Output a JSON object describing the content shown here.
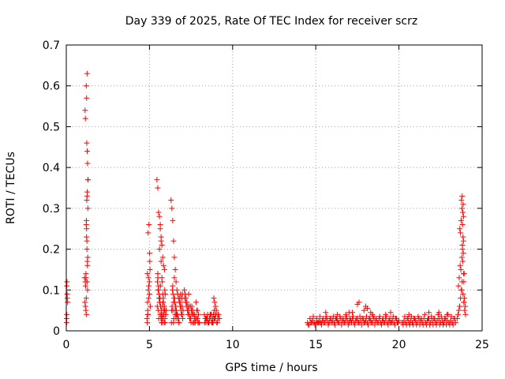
{
  "chart_data": {
    "type": "scatter",
    "title": "Day 339 of 2025, Rate Of TEC Index for receiver scrz",
    "xlabel": "GPS time / hours",
    "ylabel": "ROTI / TECUs",
    "xlim": [
      0,
      25
    ],
    "ylim": [
      0,
      0.7
    ],
    "xticks": [
      "0",
      "5",
      "10",
      "15",
      "20",
      "25"
    ],
    "yticks": [
      "0",
      "0.1",
      "0.2",
      "0.3",
      "0.4",
      "0.5",
      "0.6",
      "0.7"
    ],
    "grid": true,
    "marker": "+",
    "marker_color": "#ff0000",
    "series": [
      {
        "x": [
          0.02,
          0.02,
          0.03,
          0.03,
          0.04,
          0.05,
          0.06,
          0.08,
          1.1,
          1.12,
          1.15,
          1.18,
          1.2,
          1.22,
          1.25,
          1.27,
          1.15,
          1.13,
          1.2,
          1.22,
          1.25,
          1.23,
          1.26,
          1.28,
          1.3,
          1.25,
          1.3,
          1.2,
          1.22,
          1.24,
          1.27,
          1.18,
          1.16,
          1.21,
          1.23,
          1.26,
          1.29,
          1.24,
          1.19,
          1.14,
          1.28,
          1.31,
          1.22,
          4.85,
          4.9,
          4.95,
          5.0,
          4.88,
          4.92,
          4.97,
          5.02,
          5.05,
          4.87,
          4.93,
          5.0,
          4.9,
          4.96,
          5.03,
          4.89,
          4.94,
          5.01,
          4.91,
          5.45,
          5.5,
          5.55,
          5.6,
          5.65,
          5.7,
          5.75,
          5.8,
          5.85,
          5.9,
          5.48,
          5.52,
          5.58,
          5.62,
          5.68,
          5.72,
          5.78,
          5.82,
          5.88,
          5.95,
          5.5,
          5.55,
          5.6,
          5.7,
          5.75,
          5.8,
          5.65,
          5.7,
          5.9,
          6.0,
          5.56,
          5.64,
          5.73,
          5.84,
          5.92,
          5.47,
          5.53,
          5.61,
          5.69,
          5.77,
          5.86,
          5.94,
          5.58,
          5.66,
          5.79,
          5.87,
          5.51,
          5.63,
          5.71,
          5.83,
          5.93,
          5.54,
          5.67,
          5.76,
          5.89,
          5.98,
          5.6,
          5.74,
          5.81,
          5.91,
          6.3,
          6.35,
          6.4,
          6.45,
          6.5,
          6.55,
          6.6,
          6.65,
          6.7,
          6.75,
          6.8,
          6.85,
          6.9,
          6.95,
          7.0,
          6.32,
          6.38,
          6.42,
          6.48,
          6.52,
          6.58,
          6.62,
          6.68,
          6.72,
          6.78,
          6.82,
          6.88,
          6.92,
          6.98,
          7.02,
          6.4,
          6.45,
          6.5,
          6.55,
          6.6,
          6.36,
          6.44,
          6.54,
          6.64,
          6.74,
          6.84,
          6.94,
          6.34,
          6.46,
          6.57,
          6.67,
          6.77,
          6.87,
          6.97,
          6.41,
          6.51,
          6.61,
          6.71,
          7.1,
          7.15,
          7.2,
          7.25,
          7.3,
          7.35,
          7.4,
          7.45,
          7.5,
          7.55,
          7.6,
          7.65,
          7.7,
          7.75,
          7.8,
          7.85,
          7.9,
          7.95,
          8.0,
          7.12,
          7.22,
          7.32,
          7.42,
          7.52,
          7.62,
          7.72,
          7.82,
          7.92,
          7.18,
          7.28,
          7.38,
          7.48,
          7.58,
          7.68,
          7.78,
          7.88,
          7.98,
          7.36,
          7.46,
          7.56,
          8.3,
          8.35,
          8.4,
          8.45,
          8.5,
          8.55,
          8.6,
          8.65,
          8.7,
          8.75,
          8.8,
          8.85,
          8.9,
          8.95,
          9.0,
          9.05,
          9.1,
          9.15,
          9.2,
          8.32,
          8.42,
          8.52,
          8.62,
          8.72,
          8.82,
          8.92,
          9.02,
          9.12,
          8.38,
          8.48,
          8.58,
          8.68,
          8.78,
          8.88,
          8.98,
          9.08,
          9.18,
          8.87,
          8.92,
          8.97,
          14.5,
          14.6,
          14.7,
          14.8,
          14.9,
          15.0,
          15.1,
          15.2,
          15.3,
          15.4,
          15.5,
          15.6,
          15.7,
          15.8,
          15.9,
          16.0,
          16.1,
          16.2,
          16.3,
          16.4,
          16.5,
          16.6,
          16.7,
          16.8,
          16.9,
          17.0,
          17.1,
          17.2,
          17.3,
          17.4,
          17.5,
          17.6,
          17.7,
          17.8,
          17.9,
          18.0,
          18.1,
          18.2,
          18.3,
          18.4,
          18.5,
          18.6,
          18.7,
          18.8,
          18.9,
          19.0,
          19.1,
          19.2,
          19.3,
          19.4,
          19.5,
          19.6,
          19.7,
          19.8,
          19.9,
          20.0,
          14.55,
          14.75,
          14.95,
          15.15,
          15.35,
          15.55,
          15.75,
          15.95,
          16.15,
          16.35,
          16.55,
          16.75,
          16.95,
          17.15,
          17.35,
          17.55,
          17.75,
          17.95,
          18.15,
          18.35,
          18.55,
          18.75,
          18.95,
          19.15,
          19.35,
          19.55,
          19.75,
          19.95,
          14.65,
          14.85,
          15.05,
          15.25,
          15.45,
          15.65,
          15.85,
          16.05,
          16.25,
          16.45,
          16.65,
          16.85,
          17.05,
          17.25,
          17.45,
          17.65,
          17.85,
          18.05,
          18.25,
          18.45,
          18.65,
          18.85,
          19.05,
          19.25,
          19.45,
          19.65,
          19.85,
          15.6,
          16.3,
          17.2,
          17.5,
          17.6,
          17.9,
          18.0,
          18.3,
          18.4,
          19.2,
          19.5,
          16.8,
          17.0,
          18.1,
          20.2,
          20.3,
          20.4,
          20.5,
          20.6,
          20.7,
          20.8,
          20.9,
          21.0,
          21.1,
          21.2,
          21.3,
          21.4,
          21.5,
          21.6,
          21.7,
          21.8,
          21.9,
          22.0,
          22.1,
          22.2,
          22.3,
          22.4,
          22.5,
          22.6,
          22.7,
          22.8,
          22.9,
          23.0,
          23.1,
          23.2,
          23.3,
          23.4,
          20.25,
          20.45,
          20.65,
          20.85,
          21.05,
          21.25,
          21.45,
          21.65,
          21.85,
          22.05,
          22.25,
          22.45,
          22.65,
          22.85,
          23.05,
          23.25,
          20.35,
          20.55,
          20.75,
          20.95,
          21.15,
          21.35,
          21.55,
          21.75,
          21.95,
          22.15,
          22.35,
          22.55,
          22.75,
          22.95,
          23.15,
          23.35,
          20.6,
          21.8,
          22.4,
          22.9,
          23.5,
          23.55,
          23.6,
          23.65,
          23.7,
          23.75,
          23.8,
          23.85,
          23.9,
          23.95,
          24.0,
          23.58,
          23.62,
          23.68,
          23.72,
          23.78,
          23.82,
          23.88,
          23.92,
          23.98,
          23.66,
          23.74,
          23.84,
          23.94,
          23.76,
          23.8,
          23.86,
          23.7,
          23.9,
          23.82,
          23.88,
          23.79,
          23.85,
          23.81,
          23.87,
          23.83,
          23.89,
          23.77,
          23.91
        ],
        "y": [
          0.02,
          0.03,
          0.04,
          0.11,
          0.12,
          0.09,
          0.08,
          0.07,
          0.13,
          0.07,
          0.06,
          0.05,
          0.08,
          0.04,
          0.12,
          0.17,
          0.52,
          0.54,
          0.6,
          0.57,
          0.63,
          0.46,
          0.44,
          0.41,
          0.37,
          0.33,
          0.3,
          0.26,
          0.23,
          0.2,
          0.16,
          0.14,
          0.11,
          0.27,
          0.32,
          0.34,
          0.18,
          0.22,
          0.13,
          0.12,
          0.1,
          0.37,
          0.25,
          0.03,
          0.05,
          0.08,
          0.12,
          0.14,
          0.24,
          0.26,
          0.17,
          0.06,
          0.02,
          0.1,
          0.09,
          0.04,
          0.11,
          0.15,
          0.07,
          0.13,
          0.19,
          0.04,
          0.37,
          0.35,
          0.29,
          0.28,
          0.26,
          0.23,
          0.21,
          0.18,
          0.16,
          0.15,
          0.12,
          0.1,
          0.08,
          0.07,
          0.06,
          0.05,
          0.04,
          0.03,
          0.02,
          0.09,
          0.14,
          0.11,
          0.2,
          0.17,
          0.13,
          0.09,
          0.25,
          0.22,
          0.06,
          0.05,
          0.03,
          0.04,
          0.02,
          0.08,
          0.1,
          0.06,
          0.05,
          0.07,
          0.03,
          0.12,
          0.04,
          0.02,
          0.09,
          0.11,
          0.06,
          0.05,
          0.13,
          0.08,
          0.04,
          0.07,
          0.03,
          0.1,
          0.06,
          0.02,
          0.05,
          0.04,
          0.08,
          0.03,
          0.07,
          0.05,
          0.32,
          0.3,
          0.27,
          0.22,
          0.18,
          0.15,
          0.12,
          0.1,
          0.09,
          0.08,
          0.07,
          0.06,
          0.05,
          0.04,
          0.03,
          0.02,
          0.1,
          0.09,
          0.08,
          0.07,
          0.06,
          0.05,
          0.04,
          0.03,
          0.02,
          0.08,
          0.06,
          0.04,
          0.09,
          0.05,
          0.11,
          0.07,
          0.13,
          0.04,
          0.03,
          0.06,
          0.02,
          0.05,
          0.04,
          0.03,
          0.07,
          0.08,
          0.05,
          0.03,
          0.06,
          0.04,
          0.02,
          0.09,
          0.06,
          0.05,
          0.08,
          0.04,
          0.03,
          0.1,
          0.09,
          0.08,
          0.07,
          0.06,
          0.05,
          0.04,
          0.03,
          0.02,
          0.06,
          0.05,
          0.04,
          0.03,
          0.02,
          0.07,
          0.05,
          0.03,
          0.04,
          0.02,
          0.08,
          0.06,
          0.04,
          0.03,
          0.05,
          0.02,
          0.04,
          0.03,
          0.02,
          0.07,
          0.05,
          0.06,
          0.03,
          0.04,
          0.02,
          0.03,
          0.05,
          0.02,
          0.09,
          0.06,
          0.04,
          0.04,
          0.03,
          0.02,
          0.03,
          0.04,
          0.02,
          0.03,
          0.04,
          0.03,
          0.02,
          0.03,
          0.04,
          0.05,
          0.03,
          0.04,
          0.02,
          0.03,
          0.04,
          0.03,
          0.02,
          0.03,
          0.02,
          0.03,
          0.04,
          0.02,
          0.03,
          0.05,
          0.04,
          0.03,
          0.03,
          0.02,
          0.04,
          0.02,
          0.03,
          0.04,
          0.02,
          0.03,
          0.08,
          0.07,
          0.06,
          0.02,
          0.015,
          0.02,
          0.025,
          0.02,
          0.018,
          0.02,
          0.022,
          0.02,
          0.025,
          0.02,
          0.03,
          0.025,
          0.02,
          0.03,
          0.025,
          0.02,
          0.03,
          0.025,
          0.02,
          0.03,
          0.025,
          0.02,
          0.03,
          0.025,
          0.02,
          0.025,
          0.03,
          0.02,
          0.025,
          0.03,
          0.02,
          0.025,
          0.03,
          0.02,
          0.025,
          0.02,
          0.03,
          0.025,
          0.02,
          0.03,
          0.025,
          0.02,
          0.03,
          0.02,
          0.025,
          0.02,
          0.03,
          0.02,
          0.025,
          0.02,
          0.025,
          0.02,
          0.03,
          0.02,
          0.025,
          0.015,
          0.02,
          0.015,
          0.02,
          0.015,
          0.02,
          0.015,
          0.02,
          0.015,
          0.02,
          0.015,
          0.02,
          0.015,
          0.02,
          0.015,
          0.02,
          0.015,
          0.02,
          0.015,
          0.02,
          0.015,
          0.02,
          0.015,
          0.02,
          0.015,
          0.02,
          0.015,
          0.02,
          0.03,
          0.035,
          0.03,
          0.035,
          0.03,
          0.035,
          0.03,
          0.035,
          0.03,
          0.035,
          0.03,
          0.035,
          0.03,
          0.035,
          0.03,
          0.035,
          0.03,
          0.035,
          0.03,
          0.035,
          0.03,
          0.035,
          0.03,
          0.035,
          0.03,
          0.035,
          0.03,
          0.045,
          0.04,
          0.045,
          0.065,
          0.07,
          0.05,
          0.06,
          0.045,
          0.04,
          0.04,
          0.045,
          0.04,
          0.045,
          0.055,
          0.02,
          0.025,
          0.02,
          0.03,
          0.02,
          0.025,
          0.02,
          0.03,
          0.025,
          0.02,
          0.03,
          0.025,
          0.02,
          0.03,
          0.02,
          0.025,
          0.03,
          0.02,
          0.025,
          0.03,
          0.02,
          0.025,
          0.03,
          0.02,
          0.025,
          0.02,
          0.03,
          0.025,
          0.02,
          0.025,
          0.02,
          0.03,
          0.02,
          0.015,
          0.015,
          0.015,
          0.015,
          0.015,
          0.015,
          0.015,
          0.015,
          0.015,
          0.015,
          0.015,
          0.015,
          0.015,
          0.015,
          0.015,
          0.015,
          0.035,
          0.03,
          0.035,
          0.03,
          0.035,
          0.03,
          0.04,
          0.03,
          0.035,
          0.03,
          0.04,
          0.035,
          0.03,
          0.04,
          0.035,
          0.03,
          0.04,
          0.045,
          0.045,
          0.04,
          0.03,
          0.04,
          0.05,
          0.06,
          0.08,
          0.1,
          0.12,
          0.09,
          0.07,
          0.05,
          0.04,
          0.11,
          0.13,
          0.16,
          0.15,
          0.18,
          0.2,
          0.22,
          0.14,
          0.06,
          0.25,
          0.27,
          0.29,
          0.08,
          0.32,
          0.33,
          0.31,
          0.24,
          0.12,
          0.26,
          0.28,
          0.3,
          0.23,
          0.21,
          0.19,
          0.17,
          0.14,
          0.1,
          0.07
        ]
      }
    ]
  }
}
